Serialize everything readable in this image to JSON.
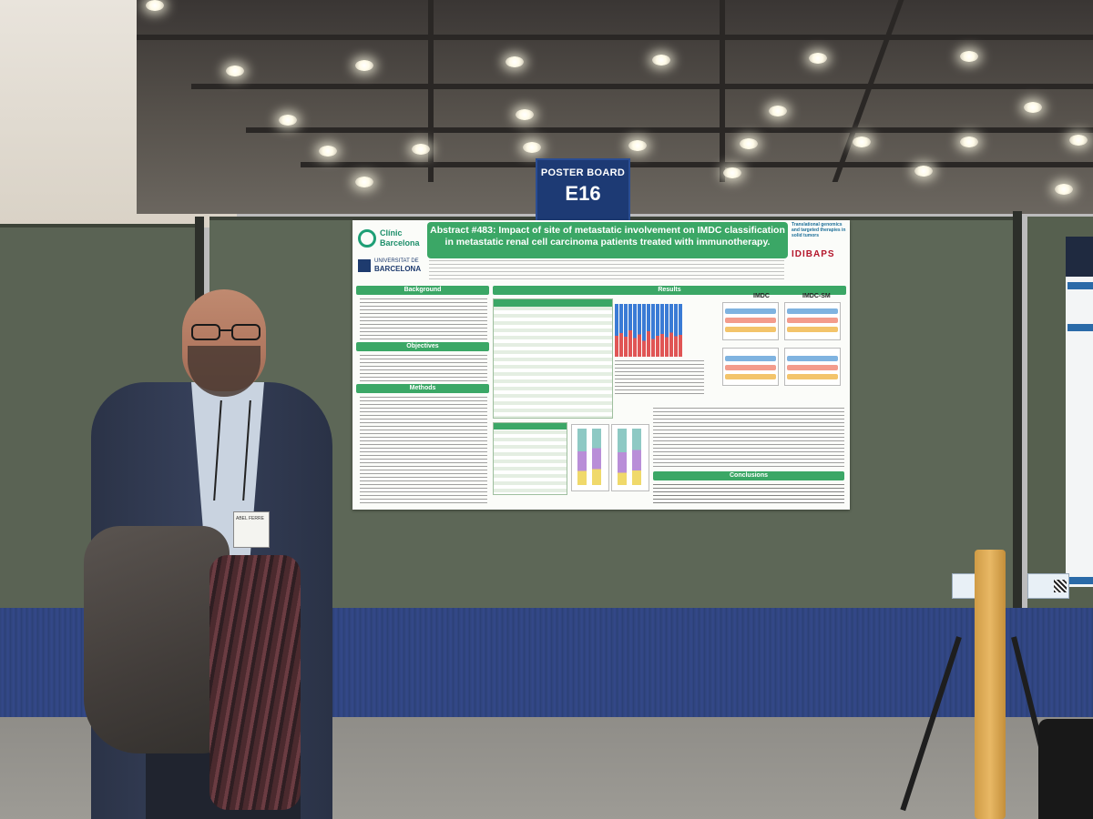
{
  "scene": {
    "description_free": true
  },
  "board_sign": {
    "line1": "POSTER BOARD",
    "line2": "E16"
  },
  "poster": {
    "logo_left_1": "Clínic",
    "logo_left_2": "Barcelona",
    "logo_ub_small": "UNIVERSITAT DE",
    "logo_ub_big": "BARCELONA",
    "title": "Abstract #483: Impact of site of metastatic involvement on IMDC classification in metastatic renal cell carcinoma patients treated with immunotherapy.",
    "right_logo_text": "Translational genomics and targeted therapies in solid tumors",
    "right_logo_brand": "IDIBAPS",
    "sections": {
      "background": "Background",
      "objectives": "Objectives",
      "methods": "Methods",
      "results": "Results",
      "conclusions": "Conclusions"
    },
    "km_labels": {
      "imdc": "IMDC",
      "imdc_sm": "IMDC-SM"
    }
  },
  "person": {
    "badge_text": "ABEL FERRE"
  },
  "colors": {
    "poster_green": "#3ba766",
    "board_sign_blue": "#1d3a74",
    "carpet_blue": "#2f447c",
    "panel_green": "#5d6757"
  }
}
